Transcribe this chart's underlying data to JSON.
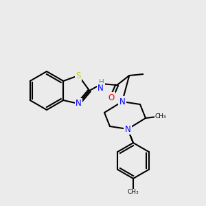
{
  "background_color": "#ebebeb",
  "atom_colors": {
    "C": "#000000",
    "N": "#0000ff",
    "O": "#ff0000",
    "S": "#cccc00",
    "H": "#808080"
  },
  "bond_color": "#000000",
  "bond_width": 1.5,
  "font_size_atom": 7.5
}
